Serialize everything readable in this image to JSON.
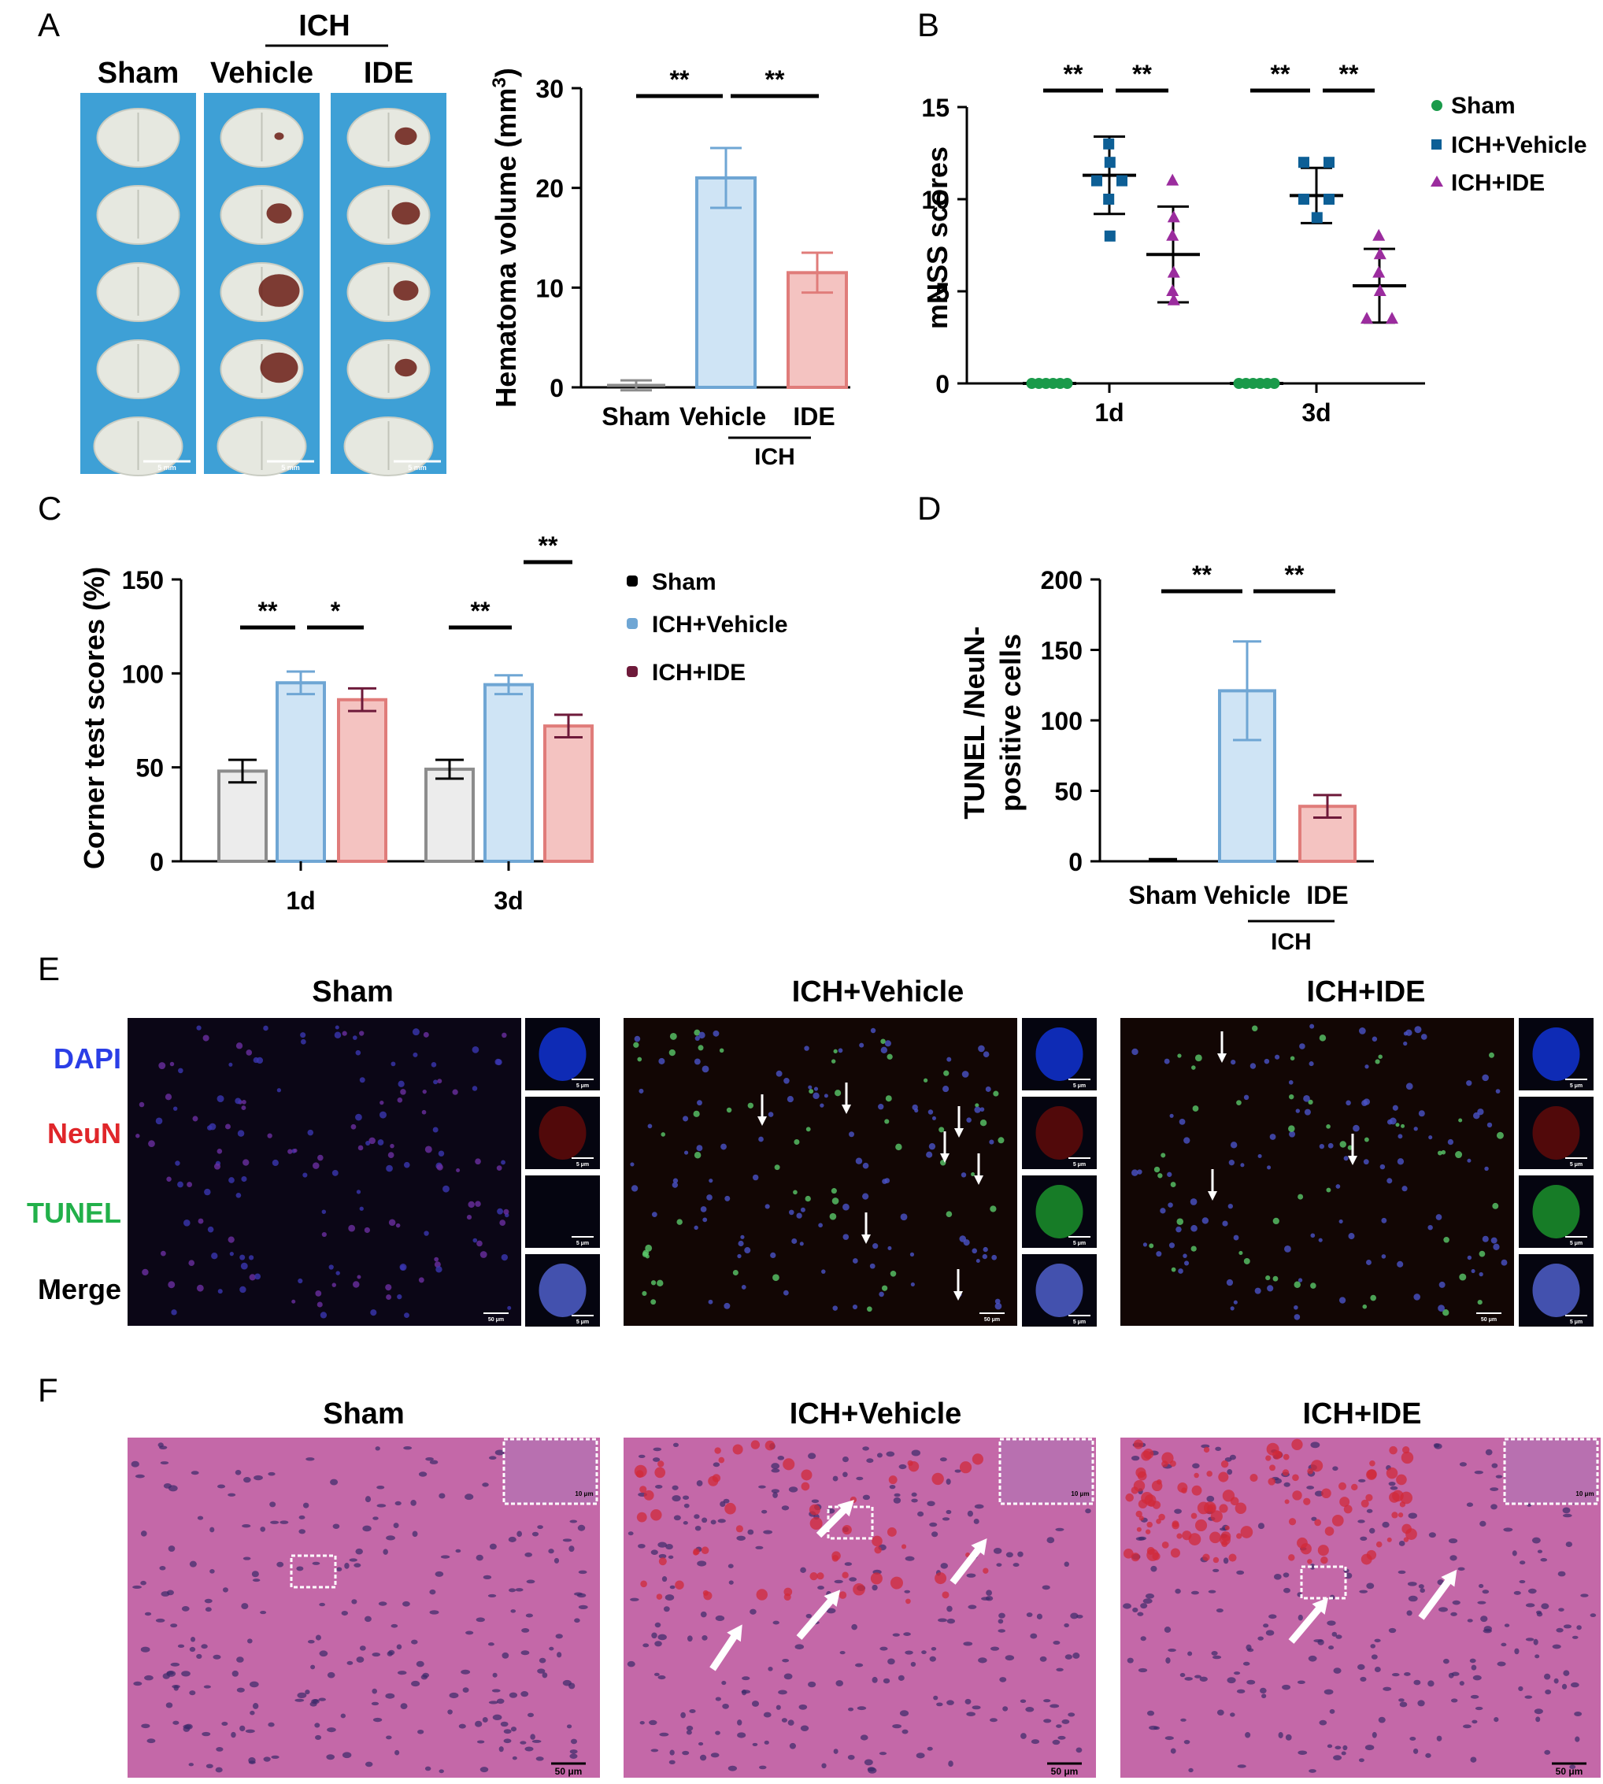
{
  "panel_letters": [
    "A",
    "B",
    "C",
    "D",
    "E",
    "F"
  ],
  "colors": {
    "sham_fill": "#ececec",
    "sham_stroke": "#8c8c8c",
    "vehicle_fill": "#cfe4f5",
    "vehicle_stroke": "#6fa6d4",
    "ide_fill": "#f4c3c1",
    "ide_stroke": "#e07c7a",
    "sham_dot": "#1a9a4a",
    "vehicle_dot": "#0d5f96",
    "ide_dot": "#9b2c9e",
    "c_legend_sham": "#000000",
    "c_legend_vehicle": "#6fa6d4",
    "c_legend_ide": "#6e1a3a",
    "blue_label": "#2a3ee6",
    "red_label": "#e0262a",
    "green_label": "#22b04a",
    "blot_bg": "#3ea0d6",
    "he_pink": "#c468a8"
  },
  "panelA": {
    "top_group": "ICH",
    "columns": [
      "Sham",
      "Vehicle",
      "IDE"
    ],
    "scale_label": "5 mm"
  },
  "chart_data": [
    {
      "id": "A-bar",
      "type": "bar",
      "categories": [
        "Sham",
        "Vehicle",
        "IDE"
      ],
      "values": [
        0.2,
        21,
        11.5
      ],
      "errors": [
        0.5,
        3,
        2
      ],
      "ylabel": "Hematoma volume (mm³)",
      "ylabel_main": "Hematoma volume (mm",
      "ylabel_sup": "3",
      "ylabel_close": ")",
      "ylim": [
        0,
        30
      ],
      "yticks": [
        "0",
        "10",
        "20",
        "30"
      ],
      "group_label": "ICH",
      "significance": [
        "**",
        "**"
      ]
    },
    {
      "id": "B-scatter",
      "type": "scatter",
      "categories": [
        "1d",
        "3d"
      ],
      "ylabel": "mNSS scores",
      "ylim": [
        0,
        15
      ],
      "yticks": [
        "0",
        "5",
        "10",
        "15"
      ],
      "legend": [
        "Sham",
        "ICH+Vehicle",
        "ICH+IDE"
      ],
      "legend_position": "right",
      "series": [
        {
          "name": "Sham",
          "points": [
            [
              0,
              0,
              0,
              0,
              0,
              0
            ],
            [
              0,
              0,
              0,
              0,
              0,
              0
            ]
          ],
          "mean": [
            0,
            0
          ],
          "sd": [
            0,
            0
          ]
        },
        {
          "name": "ICH+Vehicle",
          "points": [
            [
              13,
              12,
              11,
              11,
              10,
              8
            ],
            [
              12,
              12,
              10,
              10,
              10,
              9
            ]
          ],
          "mean": [
            11.3,
            10.2
          ],
          "sd": [
            2.1,
            1.5
          ]
        },
        {
          "name": "ICH+IDE",
          "points": [
            [
              11,
              9,
              8,
              6,
              5,
              4.5
            ],
            [
              8,
              7,
              6,
              5,
              3.5,
              3.5
            ]
          ],
          "mean": [
            7,
            5.3
          ],
          "sd": [
            2.6,
            2
          ]
        }
      ],
      "significance": [
        [
          "**",
          "**"
        ],
        [
          "**",
          "**"
        ]
      ]
    },
    {
      "id": "C-bar",
      "type": "bar",
      "categories": [
        "1d",
        "3d"
      ],
      "ylabel": "Corner test scores (%)",
      "ylim": [
        0,
        150
      ],
      "yticks": [
        "0",
        "50",
        "100",
        "150"
      ],
      "legend": [
        "Sham",
        "ICH+Vehicle",
        "ICH+IDE"
      ],
      "legend_position": "right",
      "series": [
        {
          "name": "Sham",
          "values": [
            48,
            49
          ],
          "errors": [
            6,
            5
          ]
        },
        {
          "name": "ICH+Vehicle",
          "values": [
            95,
            94
          ],
          "errors": [
            6,
            5
          ]
        },
        {
          "name": "ICH+IDE",
          "values": [
            86,
            72
          ],
          "errors": [
            6,
            6
          ]
        }
      ],
      "significance": [
        [
          "**",
          "*"
        ],
        [
          "**",
          "**"
        ]
      ]
    },
    {
      "id": "D-bar",
      "type": "bar",
      "categories": [
        "Sham",
        "Vehicle",
        "IDE"
      ],
      "values": [
        1,
        121,
        39
      ],
      "errors": [
        0.5,
        35,
        8
      ],
      "ylabel_lines": [
        "TUNEL /NeuN-",
        "positive cells"
      ],
      "ylim": [
        0,
        200
      ],
      "yticks": [
        "0",
        "50",
        "100",
        "150",
        "200"
      ],
      "group_label": "ICH",
      "significance": [
        "**",
        "**"
      ]
    }
  ],
  "panelE": {
    "titles": [
      "Sham",
      "ICH+Vehicle",
      "ICH+IDE"
    ],
    "row_labels": [
      "DAPI",
      "NeuN",
      "TUNEL",
      "Merge"
    ],
    "scale_main": "50 μm",
    "scale_inset": "5 μm"
  },
  "panelF": {
    "titles": [
      "Sham",
      "ICH+Vehicle",
      "ICH+IDE"
    ],
    "scale_main": "50 μm",
    "scale_inset": "10 μm"
  }
}
